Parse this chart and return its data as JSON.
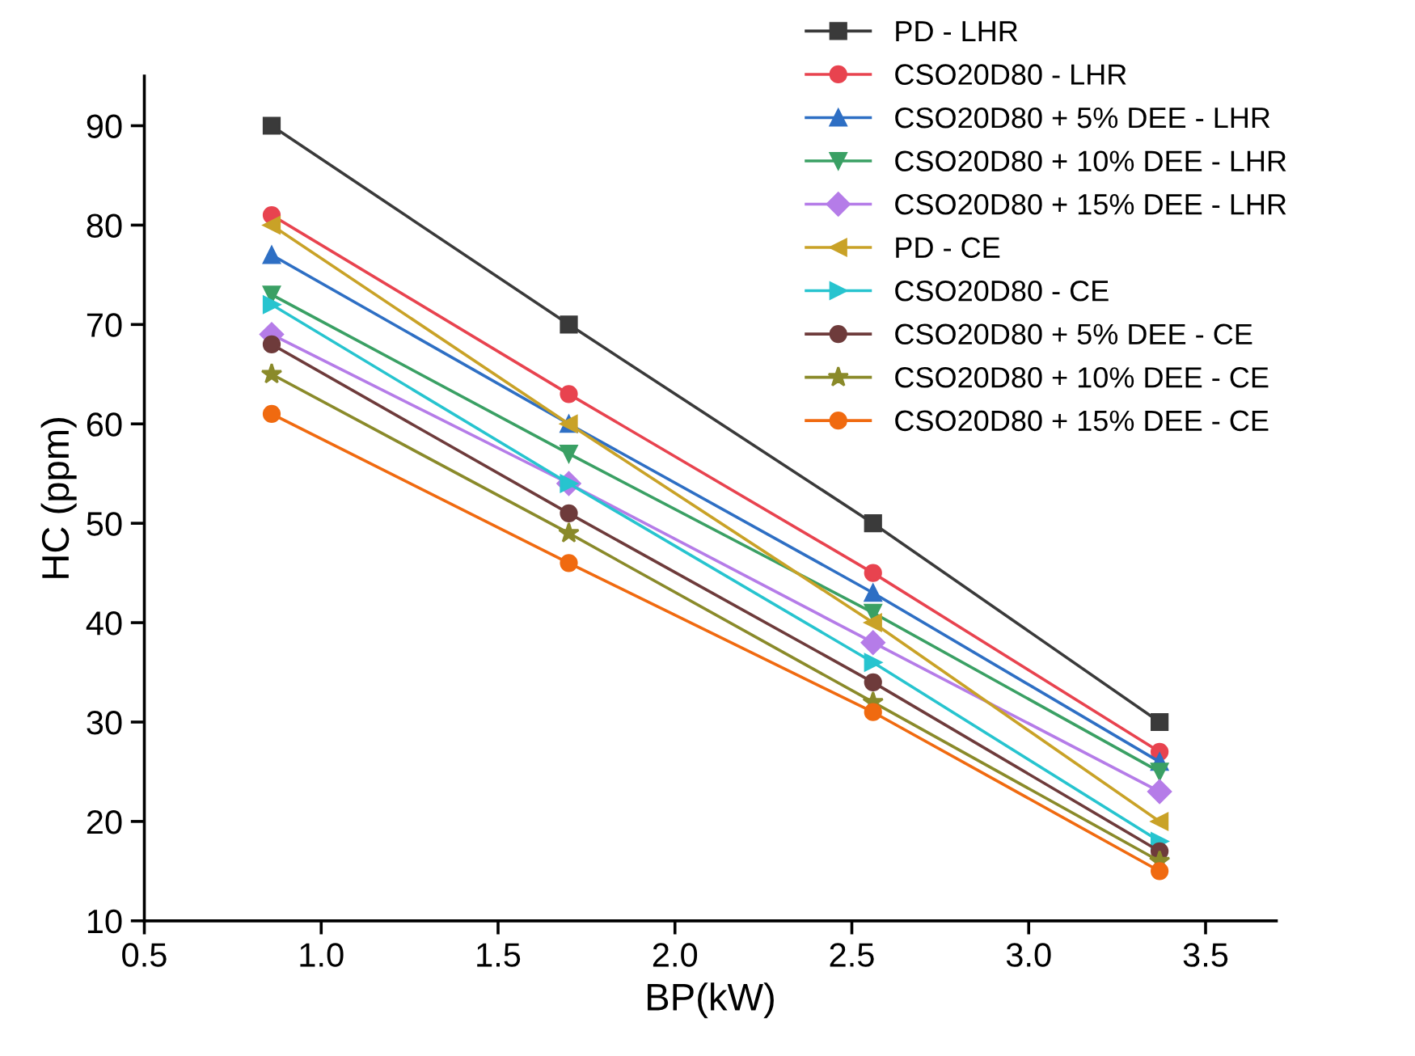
{
  "chart_data": {
    "type": "line",
    "xlabel": "BP(kW)",
    "ylabel": "HC (ppm)",
    "x": [
      0.86,
      1.7,
      2.56,
      3.37
    ],
    "xlim": [
      0.5,
      3.7
    ],
    "xticks": [
      {
        "value": 0.5,
        "label": "0.5"
      },
      {
        "value": 1.0,
        "label": "1.0"
      },
      {
        "value": 1.5,
        "label": "1.5"
      },
      {
        "value": 2.0,
        "label": "2.0"
      },
      {
        "value": 2.5,
        "label": "2.5"
      },
      {
        "value": 3.0,
        "label": "3.0"
      },
      {
        "value": 3.5,
        "label": "3.5"
      }
    ],
    "ylim": [
      10,
      95
    ],
    "yticks": [
      10,
      20,
      30,
      40,
      50,
      60,
      70,
      80,
      90
    ],
    "grid": false,
    "legend": "top right",
    "line_style": "solid",
    "series": [
      {
        "name": "PD - LHR",
        "color": "#3a3a3a",
        "marker": "square",
        "values": [
          90,
          70,
          50,
          30
        ]
      },
      {
        "name": "CSO20D80 - LHR",
        "color": "#e8434f",
        "marker": "circle",
        "values": [
          81,
          63,
          45,
          27
        ]
      },
      {
        "name": "CSO20D80 + 5% DEE - LHR",
        "color": "#2e6fc4",
        "marker": "triangle",
        "values": [
          77,
          60,
          43,
          26
        ]
      },
      {
        "name": "CSO20D80 + 10% DEE - LHR",
        "color": "#3aa064",
        "marker": "triangle_down",
        "values": [
          73,
          57,
          41,
          25
        ]
      },
      {
        "name": "CSO20D80 + 15% DEE - LHR",
        "color": "#b57ce8",
        "marker": "diamond",
        "values": [
          69,
          54,
          38,
          23
        ]
      },
      {
        "name": "PD - CE",
        "color": "#c9a227",
        "marker": "triangle_left",
        "values": [
          80,
          60,
          40,
          20
        ]
      },
      {
        "name": "CSO20D80 - CE",
        "color": "#27c4cf",
        "marker": "triangle_right",
        "values": [
          72,
          54,
          36,
          18
        ]
      },
      {
        "name": "CSO20D80 + 5% DEE - CE",
        "color": "#6e3b3b",
        "marker": "circle",
        "values": [
          68,
          51,
          34,
          17
        ]
      },
      {
        "name": "CSO20D80 + 10% DEE - CE",
        "color": "#8a8a2a",
        "marker": "star",
        "values": [
          65,
          49,
          32,
          16
        ]
      },
      {
        "name": "CSO20D80 + 15% DEE - CE",
        "color": "#f06a10",
        "marker": "circle",
        "values": [
          61,
          46,
          31,
          15
        ]
      }
    ]
  }
}
